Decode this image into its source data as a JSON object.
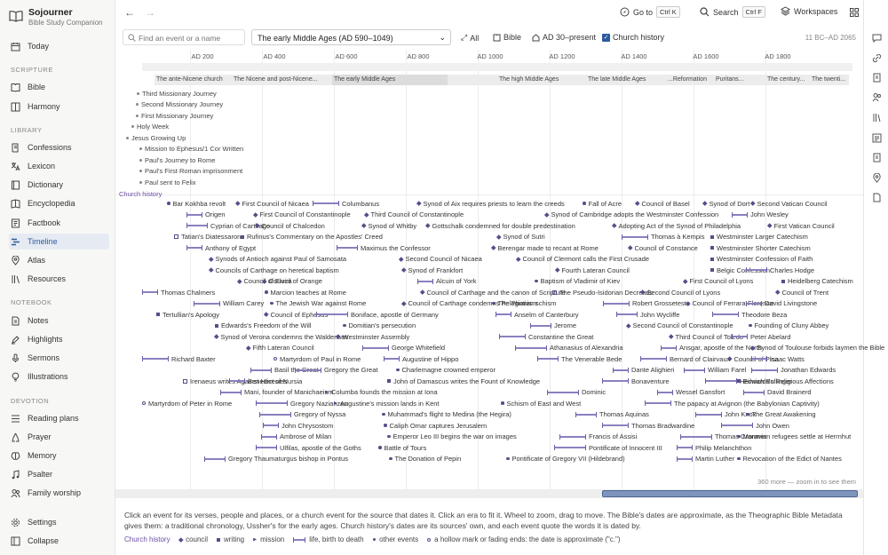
{
  "app": {
    "name": "Sojourner",
    "subtitle": "Bible Study Companion"
  },
  "sidebar": {
    "top": [
      {
        "label": "Today",
        "icon": "calendar-icon"
      }
    ],
    "sections": [
      {
        "heading": "SCRIPTURE",
        "items": [
          {
            "label": "Bible",
            "icon": "book-icon"
          },
          {
            "label": "Harmony",
            "icon": "columns-icon"
          }
        ]
      },
      {
        "heading": "LIBRARY",
        "items": [
          {
            "label": "Confessions",
            "icon": "scroll-icon"
          },
          {
            "label": "Lexicon",
            "icon": "translate-icon"
          },
          {
            "label": "Dictionary",
            "icon": "dictionary-icon"
          },
          {
            "label": "Encyclopedia",
            "icon": "encyclopedia-icon"
          },
          {
            "label": "Factbook",
            "icon": "factbook-icon"
          },
          {
            "label": "Timeline",
            "icon": "timeline-icon",
            "active": true
          },
          {
            "label": "Atlas",
            "icon": "map-pin-icon"
          },
          {
            "label": "Resources",
            "icon": "library-icon"
          }
        ]
      },
      {
        "heading": "NOTEBOOK",
        "items": [
          {
            "label": "Notes",
            "icon": "note-icon"
          },
          {
            "label": "Highlights",
            "icon": "highlighter-icon"
          },
          {
            "label": "Sermons",
            "icon": "microphone-icon"
          },
          {
            "label": "Illustrations",
            "icon": "lightbulb-icon"
          }
        ]
      },
      {
        "heading": "DEVOTION",
        "items": [
          {
            "label": "Reading plans",
            "icon": "plan-icon"
          },
          {
            "label": "Prayer",
            "icon": "prayer-icon"
          },
          {
            "label": "Memory",
            "icon": "brain-icon"
          },
          {
            "label": "Psalter",
            "icon": "music-icon"
          },
          {
            "label": "Family worship",
            "icon": "people-icon"
          }
        ]
      }
    ],
    "bottom": [
      {
        "label": "Settings",
        "icon": "gear-icon"
      },
      {
        "label": "Collapse",
        "icon": "collapse-icon"
      }
    ]
  },
  "topbar": {
    "goto_label": "Go to",
    "goto_kbd": "Ctrl K",
    "search_label": "Search",
    "search_kbd": "Ctrl F",
    "workspaces_label": "Workspaces"
  },
  "filter": {
    "search_placeholder": "Find an event or a name",
    "era_selected": "The early Middle Ages (AD 590–1049)",
    "all_label": "All",
    "bible_label": "Bible",
    "range_label": "AD 30–present",
    "church_history_label": "Church history",
    "church_history_checked": true,
    "span_text": "11 BC–AD 2065"
  },
  "axis": {
    "ticks": [
      "AD 200",
      "AD 400",
      "AD 600",
      "AD 800",
      "AD 1000",
      "AD 1200",
      "AD 1400",
      "AD 1600",
      "AD 1800"
    ]
  },
  "eras": [
    "The ante-Nicene church",
    "The Nicene and post-Nicene...",
    "The early Middle Ages",
    "The high Middle Ages",
    "The late Middle Ages",
    "...Reformation",
    "Puritans...",
    "The century...",
    "The twenti..."
  ],
  "bible_events": [
    "Third Missionary Journey",
    "Second Missionary Journey",
    "First Missionary Journey",
    "Holy Week",
    "Jesus Growing Up",
    "Mission to Ephesus/1 Cor Written",
    "Paul's Journey to Rome",
    "Paul's First Roman imprisonment",
    "Paul sent to Felix"
  ],
  "church_history_label": "Church history",
  "church_events": [
    {
      "t": "Bar Kokhba revolt",
      "k": "other"
    },
    {
      "t": "First Council of Nicaea",
      "k": "council"
    },
    {
      "t": "Columbanus",
      "k": "life"
    },
    {
      "t": "Synod of Aix requires priests to learn the creeds",
      "k": "council"
    },
    {
      "t": "Fall of Acre",
      "k": "other"
    },
    {
      "t": "Council of Basel",
      "k": "council"
    },
    {
      "t": "Synod of Dort",
      "k": "council"
    },
    {
      "t": "Second Vatican Council",
      "k": "council"
    },
    {
      "t": "Origen",
      "k": "life"
    },
    {
      "t": "First Council of Constantinople",
      "k": "council"
    },
    {
      "t": "Third Council of Constantinople",
      "k": "council"
    },
    {
      "t": "Synod of Cambridge adopts the Westminster Confession",
      "k": "council"
    },
    {
      "t": "John Wesley",
      "k": "life"
    },
    {
      "t": "Cyprian of Carthage",
      "k": "life"
    },
    {
      "t": "Council of Chalcedon",
      "k": "council"
    },
    {
      "t": "Synod of Whitby",
      "k": "council"
    },
    {
      "t": "Gottschalk condemned for double predestination",
      "k": "council"
    },
    {
      "t": "Adopting Act of the Synod of Philadelphia",
      "k": "council"
    },
    {
      "t": "First Vatican Council",
      "k": "council"
    },
    {
      "t": "Tatian's Diatessaron",
      "k": "hollow-s"
    },
    {
      "t": "Rufinus's Commentary on the Apostles' Creed",
      "k": "writing"
    },
    {
      "t": "Synod of Sutri",
      "k": "council"
    },
    {
      "t": "Thomas à Kempis",
      "k": "life"
    },
    {
      "t": "Westminster Larger Catechism",
      "k": "writing"
    },
    {
      "t": "Anthony of Egypt",
      "k": "life"
    },
    {
      "t": "Maximus the Confessor",
      "k": "life"
    },
    {
      "t": "Berengar made to recant at Rome",
      "k": "council"
    },
    {
      "t": "Council of Constance",
      "k": "council"
    },
    {
      "t": "Westminster Shorter Catechism",
      "k": "writing"
    },
    {
      "t": "Synods of Antioch against Paul of Samosata",
      "k": "council"
    },
    {
      "t": "Second Council of Nicaea",
      "k": "council"
    },
    {
      "t": "Council of Clermont calls the First Crusade",
      "k": "council"
    },
    {
      "t": "Westminster Confession of Faith",
      "k": "writing"
    },
    {
      "t": "Councils of Carthage on heretical baptism",
      "k": "council"
    },
    {
      "t": "Synod of Frankfort",
      "k": "council"
    },
    {
      "t": "Fourth Lateran Council",
      "k": "council"
    },
    {
      "t": "Belgic Confession",
      "k": "writing"
    },
    {
      "t": "Charles Hodge",
      "k": "life"
    },
    {
      "t": "Council of Elvira",
      "k": "council"
    },
    {
      "t": "Council of Orange",
      "k": "council"
    },
    {
      "t": "Alcuin of York",
      "k": "life"
    },
    {
      "t": "Baptism of Vladimir of Kiev",
      "k": "other"
    },
    {
      "t": "First Council of Lyons",
      "k": "council"
    },
    {
      "t": "Heidelberg Catechism",
      "k": "writing"
    },
    {
      "t": "Thomas Chalmers",
      "k": "life"
    },
    {
      "t": "Marcion teaches at Rome",
      "k": "other"
    },
    {
      "t": "Council of Carthage and the canon of Scripture",
      "k": "council"
    },
    {
      "t": "The Pseudo-Isidorian Decretals",
      "k": "hollow-s"
    },
    {
      "t": "Second Council of Lyons",
      "k": "council"
    },
    {
      "t": "Council of Trent",
      "k": "council"
    },
    {
      "t": "William Carey",
      "k": "life"
    },
    {
      "t": "The Jewish War against Rome",
      "k": "other"
    },
    {
      "t": "Council of Carthage condemns Pelagianism",
      "k": "council"
    },
    {
      "t": "The Photian schism",
      "k": "other"
    },
    {
      "t": "Robert Grosseteste",
      "k": "life"
    },
    {
      "t": "Council of Ferrara-Florence",
      "k": "council"
    },
    {
      "t": "David Livingstone",
      "k": "life"
    },
    {
      "t": "Tertullian's Apology",
      "k": "writing"
    },
    {
      "t": "Council of Ephesus",
      "k": "council"
    },
    {
      "t": "Boniface, apostle of Germany",
      "k": "life"
    },
    {
      "t": "Anselm of Canterbury",
      "k": "life"
    },
    {
      "t": "John Wycliffe",
      "k": "life"
    },
    {
      "t": "Theodore Beza",
      "k": "life"
    },
    {
      "t": "Edwards's Freedom of the Will",
      "k": "writing"
    },
    {
      "t": "Domitian's persecution",
      "k": "other"
    },
    {
      "t": "Jerome",
      "k": "life"
    },
    {
      "t": "Second Council of Constantinople",
      "k": "council"
    },
    {
      "t": "Founding of Cluny Abbey",
      "k": "other"
    },
    {
      "t": "Synod of Verona condemns the Waldenses",
      "k": "council"
    },
    {
      "t": "Westminster Assembly",
      "k": "council"
    },
    {
      "t": "Constantine the Great",
      "k": "life"
    },
    {
      "t": "Third Council of Toledo",
      "k": "council"
    },
    {
      "t": "Peter Abelard",
      "k": "life"
    },
    {
      "t": "Fifth Lateran Council",
      "k": "council"
    },
    {
      "t": "George Whitefield",
      "k": "life"
    },
    {
      "t": "Athanasius of Alexandria",
      "k": "life"
    },
    {
      "t": "Ansgar, apostle of the North",
      "k": "life"
    },
    {
      "t": "Synod of Toulouse forbids laymen the Bible",
      "k": "council"
    },
    {
      "t": "Richard Baxter",
      "k": "life"
    },
    {
      "t": "Martyrdom of Paul in Rome",
      "k": "hollow-c"
    },
    {
      "t": "Augustine of Hippo",
      "k": "life"
    },
    {
      "t": "The Venerable Bede",
      "k": "life"
    },
    {
      "t": "Bernard of Clairvaux",
      "k": "life"
    },
    {
      "t": "Council of Pisa",
      "k": "council"
    },
    {
      "t": "Isaac Watts",
      "k": "life"
    },
    {
      "t": "Basil the Great",
      "k": "life"
    },
    {
      "t": "Gregory the Great",
      "k": "life"
    },
    {
      "t": "Charlemagne crowned emperor",
      "k": "other"
    },
    {
      "t": "Dante Alighieri",
      "k": "life"
    },
    {
      "t": "William Farel",
      "k": "life"
    },
    {
      "t": "Jonathan Edwards",
      "k": "life"
    },
    {
      "t": "Irenaeus writes Against Heresies",
      "k": "hollow-s"
    },
    {
      "t": "Benedict of Nursia",
      "k": "life"
    },
    {
      "t": "John of Damascus writes the Fount of Knowledge",
      "k": "writing"
    },
    {
      "t": "Bonaventure",
      "k": "life"
    },
    {
      "t": "Heinrich Bullinger",
      "k": "life"
    },
    {
      "t": "Edwards's Religious Affections",
      "k": "writing"
    },
    {
      "t": "Mani, founder of Manichaeism",
      "k": "life"
    },
    {
      "t": "Columba founds the mission at Iona",
      "k": "mission"
    },
    {
      "t": "Dominic",
      "k": "life"
    },
    {
      "t": "Wessel Gansfort",
      "k": "life"
    },
    {
      "t": "David Brainerd",
      "k": "life"
    },
    {
      "t": "Martyrdom of Peter in Rome",
      "k": "hollow-c"
    },
    {
      "t": "Gregory Nazianzen",
      "k": "life"
    },
    {
      "t": "Augustine's mission lands in Kent",
      "k": "mission"
    },
    {
      "t": "Schism of East and West",
      "k": "other"
    },
    {
      "t": "The papacy at Avignon (the Babylonian Captivity)",
      "k": "life"
    },
    {
      "t": "Gregory of Nyssa",
      "k": "life"
    },
    {
      "t": "Muhammad's flight to Medina (the Hegira)",
      "k": "other"
    },
    {
      "t": "Thomas Aquinas",
      "k": "life"
    },
    {
      "t": "John Knox",
      "k": "life"
    },
    {
      "t": "The Great Awakening",
      "k": "other"
    },
    {
      "t": "John Chrysostom",
      "k": "life"
    },
    {
      "t": "Caliph Omar captures Jerusalem",
      "k": "other"
    },
    {
      "t": "Thomas Bradwardine",
      "k": "life"
    },
    {
      "t": "John Owen",
      "k": "life"
    },
    {
      "t": "Ambrose of Milan",
      "k": "life"
    },
    {
      "t": "Emperor Leo III begins the war on images",
      "k": "other"
    },
    {
      "t": "Francis of Assisi",
      "k": "life"
    },
    {
      "t": "Thomas Cranmer",
      "k": "life"
    },
    {
      "t": "Moravian refugees settle at Herrnhut",
      "k": "other"
    },
    {
      "t": "Ulfilas, apostle of the Goths",
      "k": "life"
    },
    {
      "t": "Battle of Tours",
      "k": "other"
    },
    {
      "t": "Pontificate of Innocent III",
      "k": "life"
    },
    {
      "t": "Philip Melanchthon",
      "k": "life"
    },
    {
      "t": "Gregory Thaumaturgus bishop in Pontus",
      "k": "life"
    },
    {
      "t": "The Donation of Pepin",
      "k": "other"
    },
    {
      "t": "Pontificate of Gregory VII (Hildebrand)",
      "k": "other"
    },
    {
      "t": "Martin Luther",
      "k": "life"
    },
    {
      "t": "Revocation of the Edict of Nantes",
      "k": "other"
    }
  ],
  "more_text": "360 more — zoom in to see them",
  "help_text": "Click an event for its verses, people and places, or a church event for the source that dates it. Click an era to fit it. Wheel to zoom, drag to move. The Bible's dates are approximate, as the Theographic Bible Metadata gives them: a traditional chronology, Ussher's for the early ages. Church history's dates are its sources' own, and each event quote the words it is dated by.",
  "legend": {
    "title": "Church history",
    "items": [
      {
        "label": "council",
        "k": "council"
      },
      {
        "label": "writing",
        "k": "writing"
      },
      {
        "label": "mission",
        "k": "mission"
      },
      {
        "label": "life, birth to death",
        "k": "life"
      },
      {
        "label": "other events",
        "k": "other"
      },
      {
        "label": "a hollow mark or fading ends: the date is approximate (\"c.\")",
        "k": "hollow-c"
      }
    ]
  }
}
